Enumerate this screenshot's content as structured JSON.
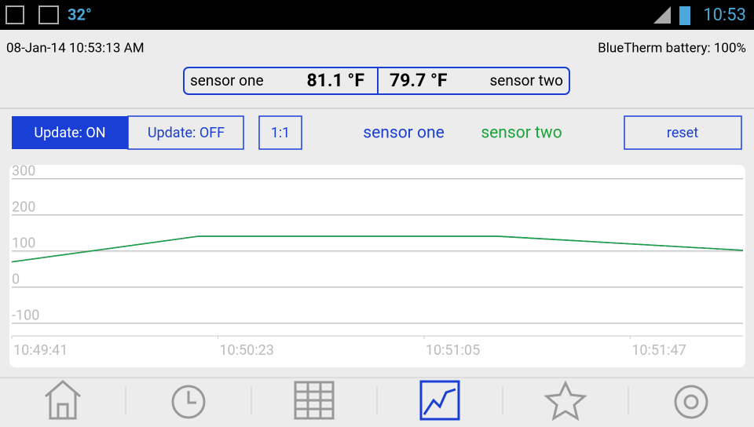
{
  "status_bar": {
    "temperature": "32°",
    "time": "10:53"
  },
  "header": {
    "datetime": "08-Jan-14 10:53:13 AM",
    "battery": "BlueTherm battery: 100%"
  },
  "readings": [
    {
      "name": "sensor one",
      "value": "81.1 °F"
    },
    {
      "name": "sensor two",
      "value": "79.7 °F"
    }
  ],
  "controls": {
    "update_on": "Update: ON",
    "update_off": "Update: OFF",
    "ratio": "1:1",
    "reset": "reset"
  },
  "chart_data": {
    "type": "line",
    "x": [
      "10:49:41",
      "10:50:19",
      "10:51:20",
      "10:52:10"
    ],
    "series": [
      {
        "name": "sensor one",
        "color": "#1a3fd6",
        "values": [
          70,
          141,
          141,
          102
        ]
      },
      {
        "name": "sensor two",
        "color": "#1aa33a",
        "values": [
          70,
          141,
          141,
          102
        ]
      }
    ],
    "xlim": [
      "10:49:41",
      "10:52:10"
    ],
    "xticks": [
      "10:49:41",
      "10:50:23",
      "10:51:05",
      "10:51:47"
    ],
    "ylim": [
      -135,
      330
    ],
    "yticks": [
      -100,
      0,
      100,
      200,
      300
    ],
    "grid": true
  }
}
